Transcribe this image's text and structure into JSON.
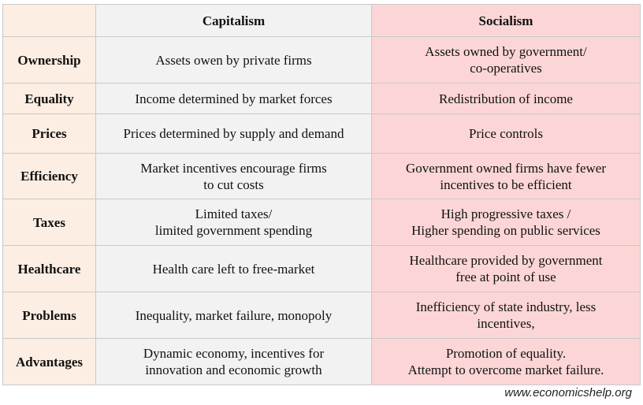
{
  "table": {
    "headers": {
      "corner": "",
      "capitalism": "Capitalism",
      "socialism": "Socialism"
    },
    "rows": [
      {
        "label": "Ownership",
        "capitalism": "Assets owen by private firms",
        "socialism": "Assets owned by government/\nco-operatives"
      },
      {
        "label": "Equality",
        "capitalism": "Income determined by market forces",
        "socialism": "Redistribution of income"
      },
      {
        "label": "Prices",
        "capitalism": "Prices determined by supply and demand",
        "socialism": "Price controls"
      },
      {
        "label": "Efficiency",
        "capitalism": "Market incentives encourage firms\nto cut costs",
        "socialism": "Government owned firms have fewer\nincentives to be efficient"
      },
      {
        "label": "Taxes",
        "capitalism": "Limited taxes/\nlimited government spending",
        "socialism": "High progressive taxes /\nHigher spending on public services"
      },
      {
        "label": "Healthcare",
        "capitalism": "Health care left to free-market",
        "socialism": "Healthcare provided by government\nfree at point of use"
      },
      {
        "label": "Problems",
        "capitalism": "Inequality, market failure, monopoly",
        "socialism": "Inefficiency of state industry, less\nincentives,"
      },
      {
        "label": "Advantages",
        "capitalism": "Dynamic economy, incentives for\ninnovation and economic growth",
        "socialism": "Promotion of equality.\nAttempt to overcome market failure."
      }
    ]
  },
  "footer": {
    "url": "www.economicshelp.org"
  },
  "colors": {
    "label_column": "#fdeee3",
    "capitalism_column": "#f2f2f2",
    "socialism_column": "#fcd6d6"
  }
}
